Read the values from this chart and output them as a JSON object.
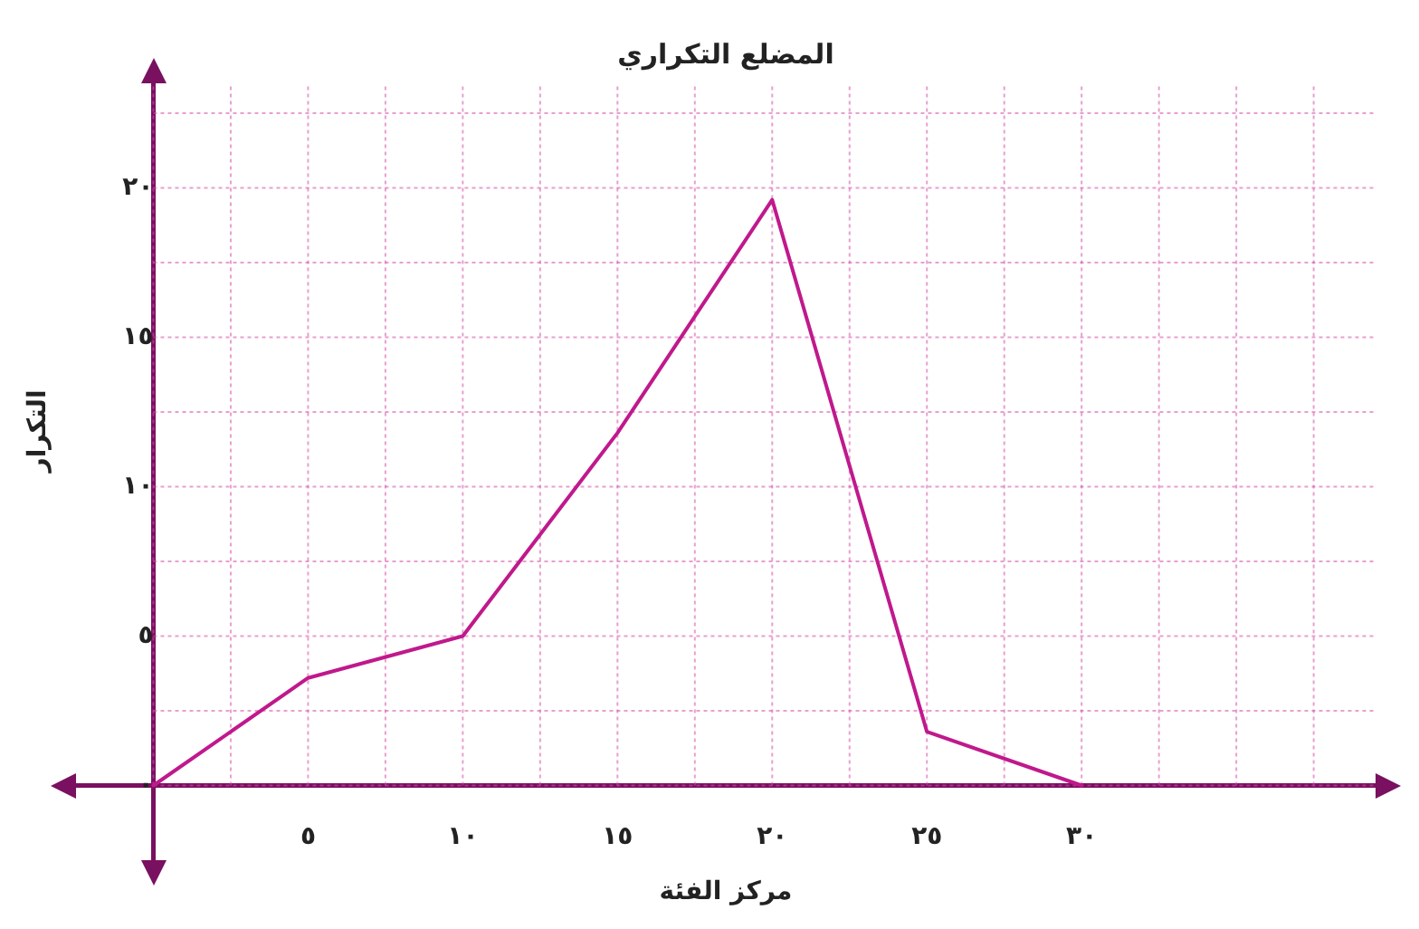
{
  "chart_data": {
    "type": "line",
    "title": "المضلع التكراري",
    "xlabel": "مركز الفئة",
    "ylabel": "التكرار",
    "x": [
      0,
      5,
      10,
      15,
      20,
      25,
      30
    ],
    "series": [
      {
        "color": "#c0198c",
        "values": [
          0,
          3.6,
          5,
          11.8,
          19.6,
          1.8,
          0
        ]
      }
    ],
    "xlim": [
      -2.5,
      39.5
    ],
    "ylim": [
      -2.5,
      23.5
    ],
    "xticks": [
      {
        "value": 0,
        "label": null
      },
      {
        "value": 2.5,
        "label": null
      },
      {
        "value": 5,
        "label": "٥"
      },
      {
        "value": 7.5,
        "label": null
      },
      {
        "value": 10,
        "label": "١٠"
      },
      {
        "value": 12.5,
        "label": null
      },
      {
        "value": 15,
        "label": "١٥"
      },
      {
        "value": 17.5,
        "label": null
      },
      {
        "value": 20,
        "label": "٢٠"
      },
      {
        "value": 22.5,
        "label": null
      },
      {
        "value": 25,
        "label": "٢٥"
      },
      {
        "value": 27.5,
        "label": null
      },
      {
        "value": 30,
        "label": "٣٠"
      },
      {
        "value": 32.5,
        "label": null
      },
      {
        "value": 35,
        "label": null
      },
      {
        "value": 37.5,
        "label": null
      }
    ],
    "yticks": [
      {
        "value": 0,
        "label": "٠"
      },
      {
        "value": 2.5,
        "label": null
      },
      {
        "value": 5,
        "label": "٥"
      },
      {
        "value": 7.5,
        "label": null
      },
      {
        "value": 10,
        "label": "١٠"
      },
      {
        "value": 12.5,
        "label": null
      },
      {
        "value": 15,
        "label": "١٥"
      },
      {
        "value": 17.5,
        "label": null
      },
      {
        "value": 20,
        "label": "٢٠"
      },
      {
        "value": 22.5,
        "label": null
      }
    ],
    "grid": true,
    "marker": "none",
    "line_style": "solid",
    "legend": false
  }
}
